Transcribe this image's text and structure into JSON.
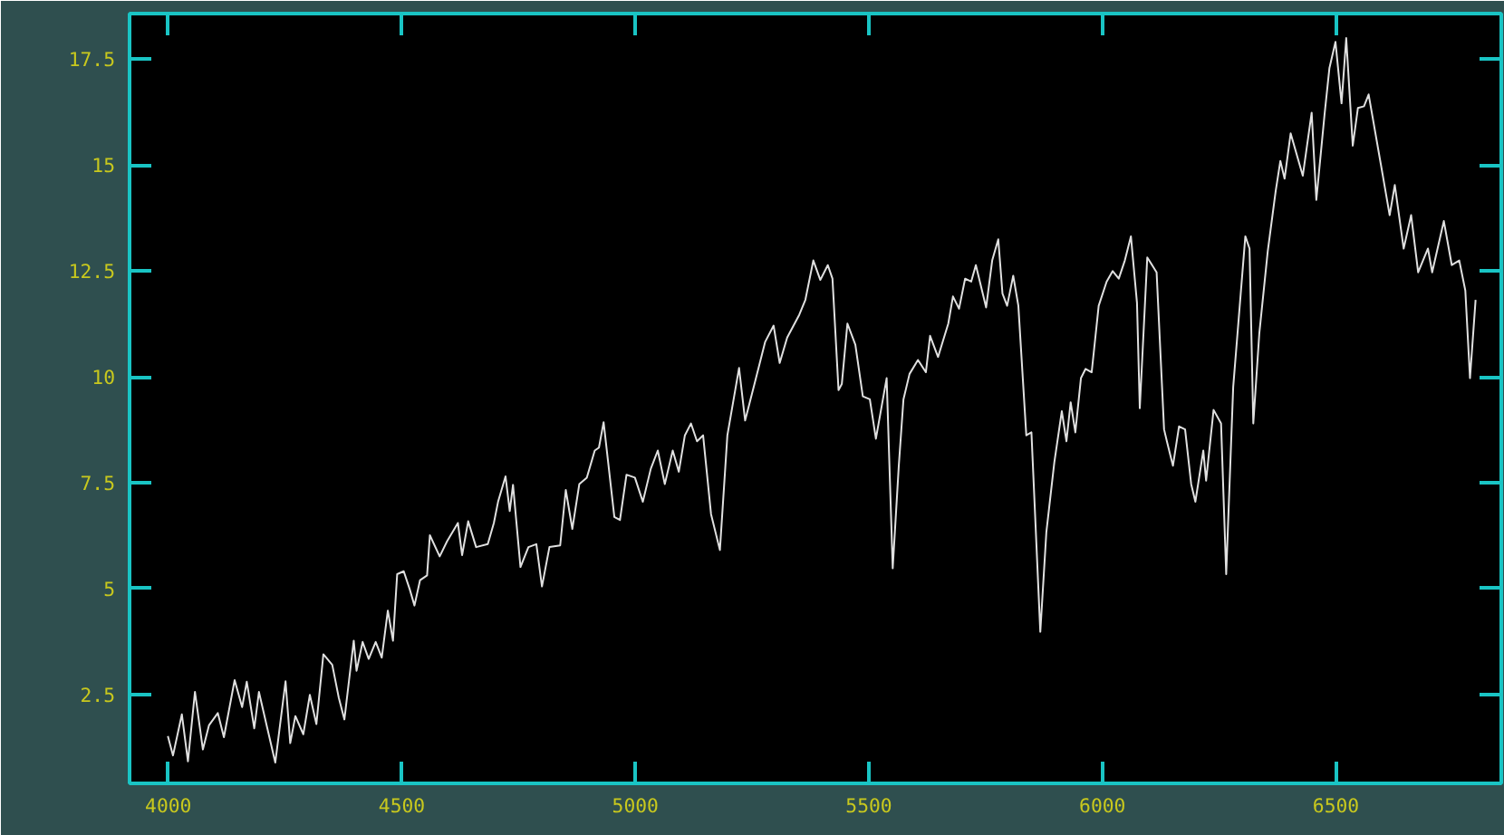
{
  "chart_data": {
    "type": "line",
    "color": "#e0e0e0",
    "grid": false,
    "xlim": [
      3917,
      6854
    ],
    "ylim": [
      0.4,
      18.58
    ],
    "xticks": [
      4000,
      4500,
      5000,
      5500,
      6000,
      6500
    ],
    "yticks": [
      2.5,
      5,
      7.5,
      10,
      12.5,
      15,
      17.5
    ],
    "x": [
      3999,
      4010,
      4029,
      4042,
      4057,
      4074,
      4087,
      4106,
      4119,
      4142,
      4158,
      4168,
      4184,
      4194,
      4212,
      4229,
      4251,
      4261,
      4272,
      4289,
      4303,
      4317,
      4332,
      4351,
      4365,
      4377,
      4397,
      4403,
      4416,
      4429,
      4444,
      4457,
      4470,
      4481,
      4490,
      4504,
      4517,
      4527,
      4539,
      4554,
      4560,
      4581,
      4597,
      4620,
      4629,
      4642,
      4659,
      4684,
      4697,
      4706,
      4722,
      4731,
      4738,
      4754,
      4771,
      4788,
      4800,
      4816,
      4839,
      4851,
      4865,
      4880,
      4896,
      4913,
      4922,
      4932,
      4955,
      4967,
      4981,
      4999,
      5016,
      5033,
      5048,
      5063,
      5080,
      5093,
      5106,
      5119,
      5132,
      5145,
      5162,
      5181,
      5197,
      5222,
      5235,
      5255,
      5278,
      5296,
      5309,
      5325,
      5351,
      5364,
      5381,
      5396,
      5412,
      5422,
      5435,
      5442,
      5454,
      5471,
      5487,
      5502,
      5515,
      5538,
      5551,
      5564,
      5574,
      5587,
      5605,
      5622,
      5631,
      5648,
      5670,
      5680,
      5693,
      5706,
      5719,
      5729,
      5751,
      5764,
      5777,
      5786,
      5796,
      5809,
      5820,
      5837,
      5848,
      5867,
      5880,
      5897,
      5913,
      5923,
      5932,
      5942,
      5954,
      5964,
      5977,
      5992,
      6009,
      6022,
      6035,
      6048,
      6061,
      6074,
      6080,
      6096,
      6116,
      6132,
      6138,
      6151,
      6164,
      6177,
      6190,
      6199,
      6216,
      6222,
      6238,
      6254,
      6265,
      6280,
      6306,
      6315,
      6323,
      6336,
      6354,
      6371,
      6381,
      6390,
      6403,
      6429,
      6448,
      6458,
      6476,
      6486,
      6499,
      6512,
      6522,
      6536,
      6547,
      6560,
      6570,
      6596,
      6615,
      6626,
      6645,
      6661,
      6676,
      6697,
      6706,
      6731,
      6748,
      6764,
      6777,
      6787,
      6799
    ],
    "values": [
      1.52,
      1.06,
      2.03,
      0.92,
      2.56,
      1.2,
      1.77,
      2.06,
      1.49,
      2.84,
      2.2,
      2.8,
      1.7,
      2.56,
      1.7,
      0.89,
      2.81,
      1.35,
      1.99,
      1.56,
      2.49,
      1.8,
      3.45,
      3.2,
      2.42,
      1.91,
      3.77,
      3.06,
      3.74,
      3.34,
      3.74,
      3.37,
      4.48,
      3.77,
      5.34,
      5.41,
      4.98,
      4.6,
      5.2,
      5.31,
      6.26,
      5.76,
      6.12,
      6.55,
      5.79,
      6.59,
      5.98,
      6.05,
      6.55,
      7.05,
      7.65,
      6.83,
      7.45,
      5.51,
      5.98,
      6.05,
      5.05,
      5.98,
      6.02,
      7.33,
      6.41,
      7.47,
      7.62,
      8.26,
      8.33,
      8.93,
      6.69,
      6.62,
      7.69,
      7.62,
      7.05,
      7.83,
      8.26,
      7.47,
      8.26,
      7.76,
      8.62,
      8.9,
      8.48,
      8.62,
      6.76,
      5.91,
      8.62,
      10.21,
      8.97,
      9.83,
      10.83,
      11.21,
      10.33,
      10.93,
      11.47,
      11.82,
      12.75,
      12.29,
      12.64,
      12.32,
      9.69,
      9.83,
      11.26,
      10.76,
      9.54,
      9.47,
      8.54,
      9.97,
      5.48,
      7.9,
      9.47,
      10.07,
      10.4,
      10.11,
      10.97,
      10.47,
      11.26,
      11.9,
      11.61,
      12.32,
      12.25,
      12.64,
      11.64,
      12.75,
      13.25,
      11.97,
      11.68,
      12.39,
      11.68,
      8.62,
      8.69,
      3.98,
      6.34,
      7.98,
      9.19,
      8.48,
      9.4,
      8.69,
      9.97,
      10.19,
      10.11,
      11.68,
      12.25,
      12.5,
      12.32,
      12.75,
      13.32,
      11.75,
      9.26,
      12.82,
      12.47,
      8.76,
      8.48,
      7.9,
      8.83,
      8.76,
      7.47,
      7.05,
      8.26,
      7.55,
      9.22,
      8.9,
      5.34,
      9.76,
      13.32,
      13.03,
      8.9,
      11.04,
      12.97,
      14.39,
      15.1,
      14.68,
      15.75,
      14.75,
      16.24,
      14.18,
      16.24,
      17.29,
      17.91,
      16.46,
      18.0,
      15.46,
      16.35,
      16.39,
      16.67,
      15.03,
      13.82,
      14.53,
      13.03,
      13.82,
      12.47,
      13.03,
      12.47,
      13.68,
      12.64,
      12.75,
      12.04,
      9.97,
      11.82
    ]
  }
}
